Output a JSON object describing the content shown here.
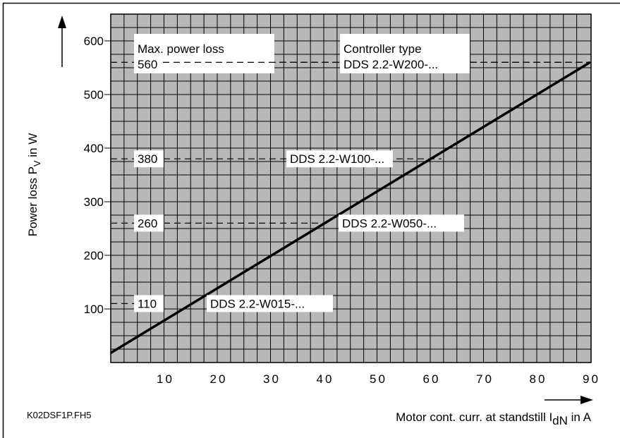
{
  "chart_data": {
    "type": "line",
    "xlabel": {
      "prefix": "Motor cont. curr. at standstill I",
      "sub": "dN",
      "suffix": " in A"
    },
    "ylabel": {
      "prefix": "Power loss P",
      "sub": "V",
      "suffix": " in W"
    },
    "xlim": [
      0,
      90
    ],
    "ylim": [
      0,
      650
    ],
    "x_ticks": [
      10,
      20,
      30,
      40,
      50,
      60,
      70,
      80,
      90
    ],
    "y_ticks": [
      100,
      200,
      300,
      400,
      500,
      600
    ],
    "grid": true,
    "line": {
      "x": [
        0,
        90
      ],
      "y": [
        18,
        560
      ]
    },
    "column_headers": {
      "power": "Max. power loss",
      "controller": "Controller type"
    },
    "thresholds": [
      {
        "power": "560",
        "value": 560,
        "controller": "DDS 2.2-W200-..."
      },
      {
        "power": "380",
        "value": 380,
        "controller": "DDS 2.2-W100-..."
      },
      {
        "power": "260",
        "value": 260,
        "controller": "DDS 2.2-W050-..."
      },
      {
        "power": "110",
        "value": 110,
        "controller": "DDS 2.2-W015-..."
      }
    ],
    "footer_code": "K02DSF1P.FH5"
  },
  "colors": {
    "plot_bg": "#b8b8b8",
    "grid": "#000000",
    "line": "#000000",
    "box": "#ffffff"
  }
}
